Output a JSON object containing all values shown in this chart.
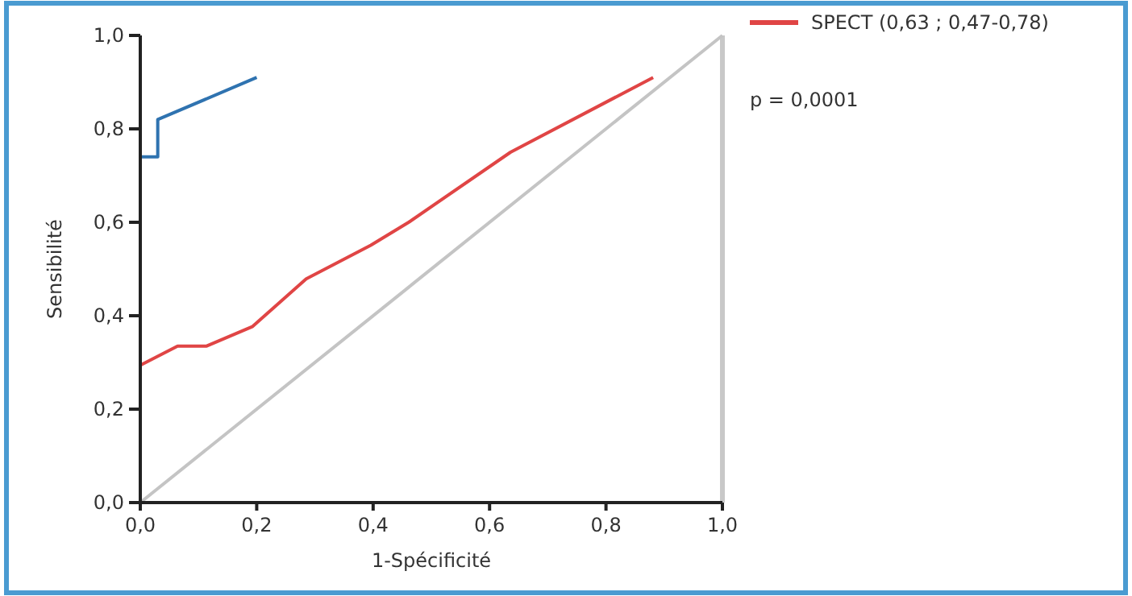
{
  "chart_data": {
    "type": "line",
    "xlabel": "1-Spécificité",
    "ylabel": "Sensibilité",
    "xlim": [
      0,
      1
    ],
    "ylim": [
      0,
      1
    ],
    "xticks": [
      {
        "value": 0,
        "label": "0,0"
      },
      {
        "value": 0.2,
        "label": "0,2"
      },
      {
        "value": 0.4,
        "label": "0,4"
      },
      {
        "value": 0.6,
        "label": "0,6"
      },
      {
        "value": 0.8,
        "label": "0,8"
      },
      {
        "value": 1,
        "label": "1,0"
      }
    ],
    "yticks": [
      {
        "value": 0,
        "label": "0,0"
      },
      {
        "value": 0.2,
        "label": "0,2"
      },
      {
        "value": 0.4,
        "label": "0,4"
      },
      {
        "value": 0.6,
        "label": "0,6"
      },
      {
        "value": 0.8,
        "label": "0,8"
      },
      {
        "value": 1,
        "label": "1,0"
      }
    ],
    "series": [
      {
        "color": "#2f73b0",
        "x": [
          0,
          0.03,
          0.03,
          0.2
        ],
        "values": [
          0.74,
          0.74,
          0.82,
          0.91
        ]
      },
      {
        "name": "SPECT (0,63 ; 0,47-0,78)",
        "color": "#e04545",
        "x": [
          0,
          0.064,
          0.114,
          0.193,
          0.285,
          0.396,
          0.461,
          0.636,
          0.881
        ],
        "values": [
          0.294,
          0.335,
          0.335,
          0.377,
          0.479,
          0.551,
          0.6,
          0.75,
          0.91
        ]
      },
      {
        "color": "#c4c4c4",
        "x": [
          0,
          1
        ],
        "values": [
          0,
          1
        ]
      }
    ],
    "ref_lines": [
      {
        "axis": "x",
        "value": 1,
        "color": "#c8c8c8"
      }
    ],
    "annotations": [
      "p = 0,0001"
    ],
    "legend": "right",
    "grid": false,
    "marker": "none",
    "line_style": "solid"
  }
}
